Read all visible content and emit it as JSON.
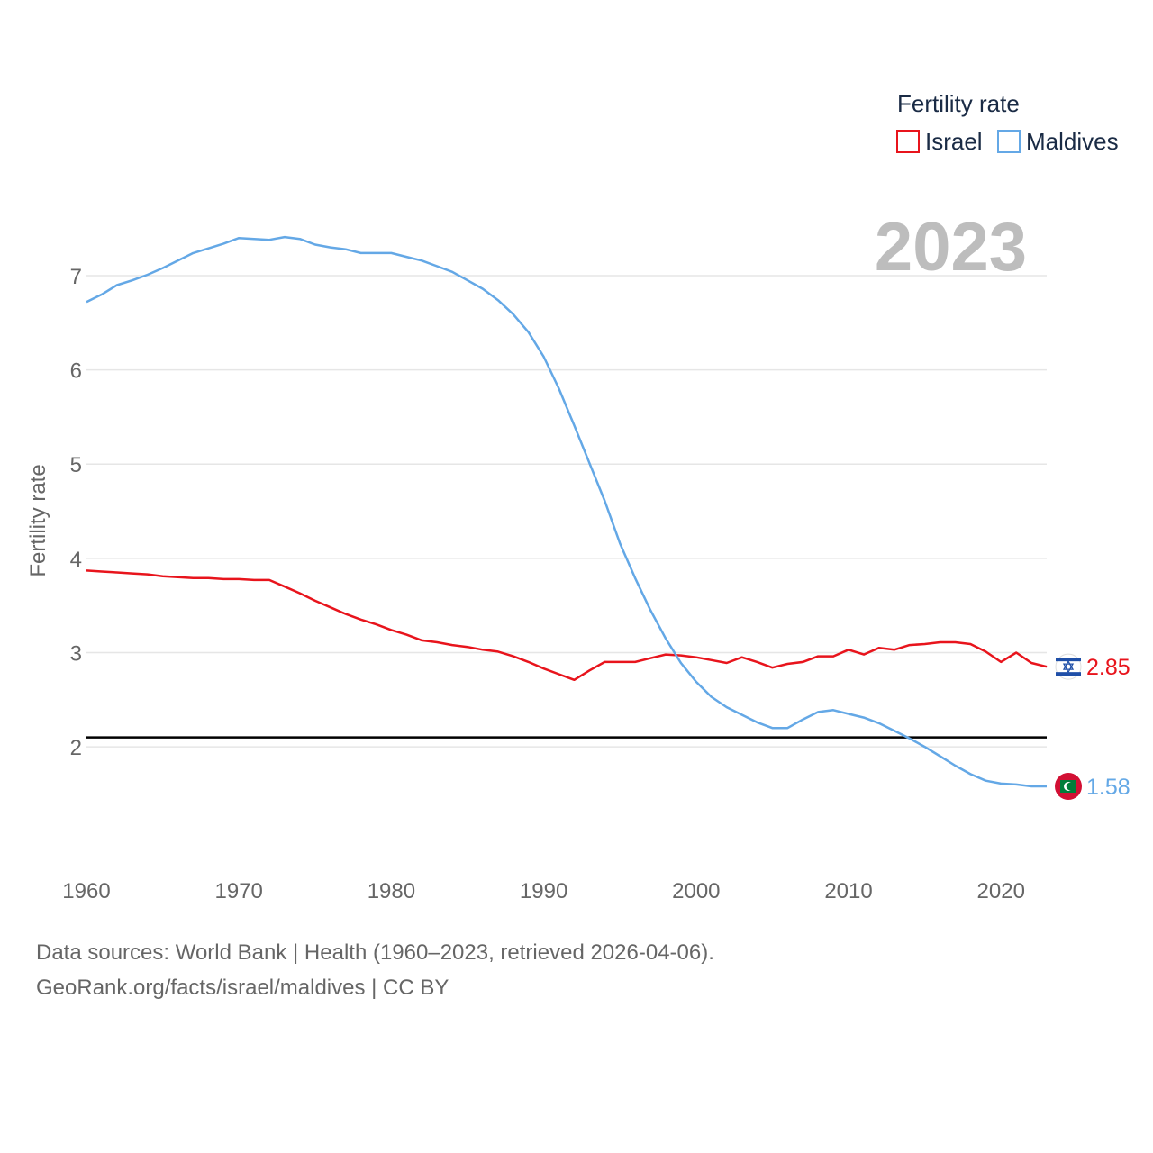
{
  "chart_data": {
    "type": "line",
    "title": "",
    "ylabel": "Fertility rate",
    "xlabel": "",
    "xlim": [
      1960,
      2023
    ],
    "ylim": [
      1.15,
      7.65
    ],
    "x_ticks": [
      "1960",
      "1970",
      "1980",
      "1990",
      "2000",
      "2010",
      "2020"
    ],
    "y_ticks": [
      "2",
      "3",
      "4",
      "5",
      "6",
      "7"
    ],
    "year_watermark": "2023",
    "legend_title": "Fertility rate",
    "reference_line": 2.1,
    "x": [
      1960,
      1961,
      1962,
      1963,
      1964,
      1965,
      1966,
      1967,
      1968,
      1969,
      1970,
      1971,
      1972,
      1973,
      1974,
      1975,
      1976,
      1977,
      1978,
      1979,
      1980,
      1981,
      1982,
      1983,
      1984,
      1985,
      1986,
      1987,
      1988,
      1989,
      1990,
      1991,
      1992,
      1993,
      1994,
      1995,
      1996,
      1997,
      1998,
      1999,
      2000,
      2001,
      2002,
      2003,
      2004,
      2005,
      2006,
      2007,
      2008,
      2009,
      2010,
      2011,
      2012,
      2013,
      2014,
      2015,
      2016,
      2017,
      2018,
      2019,
      2020,
      2021,
      2022,
      2023
    ],
    "series": [
      {
        "name": "Israel",
        "color": "#e8141c",
        "end_label": "2.85",
        "values": [
          3.87,
          3.86,
          3.85,
          3.84,
          3.83,
          3.81,
          3.8,
          3.79,
          3.79,
          3.78,
          3.78,
          3.77,
          3.77,
          3.7,
          3.63,
          3.55,
          3.48,
          3.41,
          3.35,
          3.3,
          3.24,
          3.19,
          3.13,
          3.11,
          3.08,
          3.06,
          3.03,
          3.01,
          2.96,
          2.9,
          2.83,
          2.77,
          2.71,
          2.81,
          2.9,
          2.9,
          2.9,
          2.94,
          2.98,
          2.97,
          2.95,
          2.92,
          2.89,
          2.95,
          2.9,
          2.84,
          2.88,
          2.9,
          2.96,
          2.96,
          3.03,
          2.98,
          3.05,
          3.03,
          3.08,
          3.09,
          3.11,
          3.11,
          3.09,
          3.01,
          2.9,
          3.0,
          2.89,
          2.85
        ]
      },
      {
        "name": "Maldives",
        "color": "#64a8e6",
        "end_label": "1.58",
        "values": [
          6.72,
          6.8,
          6.9,
          6.95,
          7.01,
          7.08,
          7.16,
          7.24,
          7.29,
          7.34,
          7.4,
          7.39,
          7.38,
          7.41,
          7.39,
          7.33,
          7.3,
          7.28,
          7.24,
          7.24,
          7.24,
          7.2,
          7.16,
          7.1,
          7.04,
          6.95,
          6.86,
          6.74,
          6.59,
          6.4,
          6.14,
          5.8,
          5.41,
          5.01,
          4.61,
          4.16,
          3.79,
          3.45,
          3.15,
          2.89,
          2.69,
          2.53,
          2.42,
          2.34,
          2.26,
          2.2,
          2.2,
          2.29,
          2.37,
          2.39,
          2.35,
          2.31,
          2.25,
          2.17,
          2.09,
          2.0,
          1.9,
          1.8,
          1.71,
          1.64,
          1.61,
          1.6,
          1.58,
          1.58
        ]
      }
    ]
  },
  "footer": {
    "line1": "Data sources: World Bank | Health (1960–2023, retrieved 2026-04-06).",
    "line2": "GeoRank.org/facts/israel/maldives | CC BY"
  },
  "colors": {
    "israel": "#e8141c",
    "maldives": "#64a8e6",
    "reference": "#000000",
    "grid": "#e6e6e6"
  },
  "icons": {
    "israel_flag": "israel-flag-icon",
    "maldives_flag": "maldives-flag-icon"
  }
}
